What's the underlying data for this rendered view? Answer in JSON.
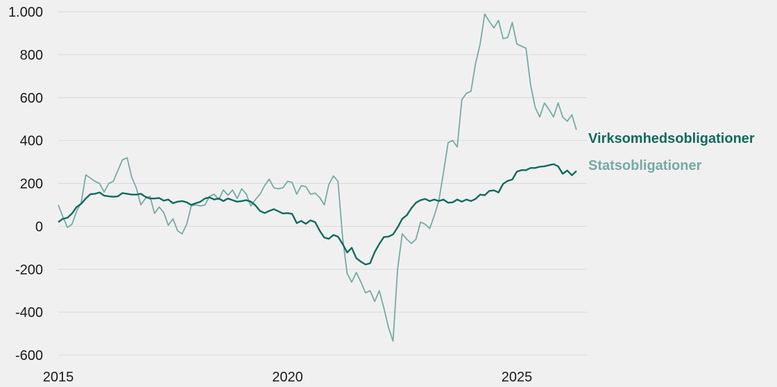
{
  "chart_data": {
    "type": "line",
    "xlim": [
      2015.0,
      2026.3
    ],
    "ylim": [
      -600,
      1000
    ],
    "y_ticks": [
      {
        "value": 1000,
        "label": "1.000"
      },
      {
        "value": 800,
        "label": "800"
      },
      {
        "value": 600,
        "label": "600"
      },
      {
        "value": 400,
        "label": "400"
      },
      {
        "value": 200,
        "label": "200"
      },
      {
        "value": 0,
        "label": "0"
      },
      {
        "value": -200,
        "label": "-200"
      },
      {
        "value": -400,
        "label": "-400"
      },
      {
        "value": -600,
        "label": "-600"
      }
    ],
    "x_ticks": [
      {
        "value": 2015,
        "label": "2015"
      },
      {
        "value": 2020,
        "label": "2020"
      },
      {
        "value": 2025,
        "label": "2025"
      }
    ],
    "grid": true,
    "legend_placement": "right, direct labels at line ends",
    "series": [
      {
        "name": "Virksomhedsobligationer",
        "color": "#0e6b5c",
        "points": [
          [
            2015.0,
            20
          ],
          [
            2015.1,
            35
          ],
          [
            2015.2,
            40
          ],
          [
            2015.3,
            60
          ],
          [
            2015.4,
            90
          ],
          [
            2015.5,
            105
          ],
          [
            2015.6,
            130
          ],
          [
            2015.7,
            150
          ],
          [
            2015.8,
            152
          ],
          [
            2015.9,
            158
          ],
          [
            2016.0,
            143
          ],
          [
            2016.1,
            140
          ],
          [
            2016.2,
            138
          ],
          [
            2016.3,
            140
          ],
          [
            2016.4,
            155
          ],
          [
            2016.5,
            152
          ],
          [
            2016.6,
            148
          ],
          [
            2016.7,
            148
          ],
          [
            2016.8,
            152
          ],
          [
            2016.9,
            138
          ],
          [
            2017.0,
            130
          ],
          [
            2017.1,
            130
          ],
          [
            2017.2,
            132
          ],
          [
            2017.3,
            120
          ],
          [
            2017.4,
            125
          ],
          [
            2017.5,
            108
          ],
          [
            2017.6,
            115
          ],
          [
            2017.7,
            118
          ],
          [
            2017.8,
            112
          ],
          [
            2017.9,
            100
          ],
          [
            2018.0,
            108
          ],
          [
            2018.1,
            115
          ],
          [
            2018.2,
            130
          ],
          [
            2018.3,
            135
          ],
          [
            2018.4,
            125
          ],
          [
            2018.5,
            130
          ],
          [
            2018.6,
            118
          ],
          [
            2018.7,
            130
          ],
          [
            2018.8,
            122
          ],
          [
            2018.9,
            115
          ],
          [
            2019.0,
            118
          ],
          [
            2019.1,
            122
          ],
          [
            2019.2,
            115
          ],
          [
            2019.3,
            98
          ],
          [
            2019.4,
            72
          ],
          [
            2019.5,
            62
          ],
          [
            2019.6,
            72
          ],
          [
            2019.7,
            80
          ],
          [
            2019.8,
            70
          ],
          [
            2019.9,
            60
          ],
          [
            2020.0,
            62
          ],
          [
            2020.1,
            58
          ],
          [
            2020.2,
            15
          ],
          [
            2020.3,
            25
          ],
          [
            2020.4,
            12
          ],
          [
            2020.5,
            28
          ],
          [
            2020.6,
            20
          ],
          [
            2020.7,
            -20
          ],
          [
            2020.8,
            -52
          ],
          [
            2020.9,
            -58
          ],
          [
            2021.0,
            -40
          ],
          [
            2021.1,
            -48
          ],
          [
            2021.2,
            -82
          ],
          [
            2021.3,
            -122
          ],
          [
            2021.4,
            -100
          ],
          [
            2021.5,
            -148
          ],
          [
            2021.6,
            -165
          ],
          [
            2021.7,
            -178
          ],
          [
            2021.8,
            -172
          ],
          [
            2021.9,
            -120
          ],
          [
            2022.0,
            -82
          ],
          [
            2022.1,
            -50
          ],
          [
            2022.2,
            -48
          ],
          [
            2022.3,
            -38
          ],
          [
            2022.4,
            -5
          ],
          [
            2022.5,
            35
          ],
          [
            2022.6,
            52
          ],
          [
            2022.7,
            85
          ],
          [
            2022.8,
            110
          ],
          [
            2022.9,
            122
          ],
          [
            2023.0,
            128
          ],
          [
            2023.1,
            118
          ],
          [
            2023.2,
            125
          ],
          [
            2023.3,
            118
          ],
          [
            2023.4,
            125
          ],
          [
            2023.5,
            110
          ],
          [
            2023.6,
            112
          ],
          [
            2023.7,
            125
          ],
          [
            2023.8,
            115
          ],
          [
            2023.9,
            125
          ],
          [
            2024.0,
            118
          ],
          [
            2024.1,
            128
          ],
          [
            2024.2,
            148
          ],
          [
            2024.3,
            145
          ],
          [
            2024.4,
            165
          ],
          [
            2024.5,
            168
          ],
          [
            2024.6,
            158
          ],
          [
            2024.7,
            198
          ],
          [
            2024.8,
            212
          ],
          [
            2024.9,
            218
          ],
          [
            2025.0,
            255
          ],
          [
            2025.1,
            262
          ],
          [
            2025.2,
            262
          ],
          [
            2025.3,
            272
          ],
          [
            2025.4,
            272
          ],
          [
            2025.5,
            278
          ],
          [
            2025.6,
            280
          ],
          [
            2025.7,
            285
          ],
          [
            2025.8,
            290
          ],
          [
            2025.9,
            280
          ],
          [
            2026.0,
            245
          ],
          [
            2026.1,
            260
          ],
          [
            2026.2,
            238
          ],
          [
            2026.3,
            258
          ]
        ]
      },
      {
        "name": "Statsobligationer",
        "color": "#76aaa4",
        "points": [
          [
            2015.0,
            100
          ],
          [
            2015.1,
            45
          ],
          [
            2015.2,
            -5
          ],
          [
            2015.3,
            10
          ],
          [
            2015.4,
            70
          ],
          [
            2015.5,
            110
          ],
          [
            2015.6,
            240
          ],
          [
            2015.7,
            225
          ],
          [
            2015.8,
            210
          ],
          [
            2015.9,
            200
          ],
          [
            2016.0,
            160
          ],
          [
            2016.1,
            200
          ],
          [
            2016.2,
            210
          ],
          [
            2016.3,
            260
          ],
          [
            2016.4,
            310
          ],
          [
            2016.5,
            320
          ],
          [
            2016.6,
            230
          ],
          [
            2016.7,
            180
          ],
          [
            2016.8,
            100
          ],
          [
            2016.9,
            130
          ],
          [
            2017.0,
            140
          ],
          [
            2017.1,
            60
          ],
          [
            2017.2,
            90
          ],
          [
            2017.3,
            65
          ],
          [
            2017.4,
            5
          ],
          [
            2017.5,
            35
          ],
          [
            2017.6,
            -20
          ],
          [
            2017.7,
            -35
          ],
          [
            2017.8,
            10
          ],
          [
            2017.9,
            95
          ],
          [
            2018.0,
            100
          ],
          [
            2018.1,
            95
          ],
          [
            2018.2,
            100
          ],
          [
            2018.3,
            140
          ],
          [
            2018.4,
            150
          ],
          [
            2018.5,
            125
          ],
          [
            2018.6,
            170
          ],
          [
            2018.7,
            145
          ],
          [
            2018.8,
            170
          ],
          [
            2018.9,
            130
          ],
          [
            2019.0,
            175
          ],
          [
            2019.1,
            150
          ],
          [
            2019.2,
            95
          ],
          [
            2019.3,
            125
          ],
          [
            2019.4,
            150
          ],
          [
            2019.5,
            190
          ],
          [
            2019.6,
            220
          ],
          [
            2019.7,
            180
          ],
          [
            2019.8,
            175
          ],
          [
            2019.9,
            180
          ],
          [
            2020.0,
            210
          ],
          [
            2020.1,
            205
          ],
          [
            2020.2,
            150
          ],
          [
            2020.3,
            190
          ],
          [
            2020.4,
            185
          ],
          [
            2020.5,
            150
          ],
          [
            2020.6,
            155
          ],
          [
            2020.7,
            135
          ],
          [
            2020.8,
            100
          ],
          [
            2020.9,
            195
          ],
          [
            2021.0,
            235
          ],
          [
            2021.1,
            210
          ],
          [
            2021.2,
            -50
          ],
          [
            2021.3,
            -220
          ],
          [
            2021.4,
            -260
          ],
          [
            2021.5,
            -215
          ],
          [
            2021.6,
            -260
          ],
          [
            2021.7,
            -310
          ],
          [
            2021.8,
            -300
          ],
          [
            2021.9,
            -350
          ],
          [
            2022.0,
            -300
          ],
          [
            2022.1,
            -380
          ],
          [
            2022.2,
            -470
          ],
          [
            2022.3,
            -535
          ],
          [
            2022.4,
            -200
          ],
          [
            2022.5,
            -35
          ],
          [
            2022.6,
            -60
          ],
          [
            2022.7,
            -80
          ],
          [
            2022.8,
            -60
          ],
          [
            2022.9,
            20
          ],
          [
            2023.0,
            10
          ],
          [
            2023.1,
            -10
          ],
          [
            2023.2,
            50
          ],
          [
            2023.3,
            120
          ],
          [
            2023.4,
            250
          ],
          [
            2023.5,
            390
          ],
          [
            2023.6,
            400
          ],
          [
            2023.7,
            370
          ],
          [
            2023.8,
            590
          ],
          [
            2023.9,
            620
          ],
          [
            2024.0,
            630
          ],
          [
            2024.1,
            760
          ],
          [
            2024.2,
            850
          ],
          [
            2024.3,
            990
          ],
          [
            2024.4,
            955
          ],
          [
            2024.5,
            925
          ],
          [
            2024.6,
            960
          ],
          [
            2024.7,
            875
          ],
          [
            2024.8,
            880
          ],
          [
            2024.9,
            950
          ],
          [
            2025.0,
            850
          ],
          [
            2025.1,
            840
          ],
          [
            2025.2,
            830
          ],
          [
            2025.3,
            660
          ],
          [
            2025.4,
            555
          ],
          [
            2025.5,
            510
          ],
          [
            2025.6,
            575
          ],
          [
            2025.7,
            545
          ],
          [
            2025.8,
            510
          ],
          [
            2025.9,
            575
          ],
          [
            2026.0,
            510
          ],
          [
            2026.1,
            490
          ],
          [
            2026.2,
            520
          ],
          [
            2026.3,
            450
          ]
        ]
      }
    ]
  },
  "legend": [
    {
      "label": "Virksomhedsobligationer",
      "color": "#0e6b5c"
    },
    {
      "label": "Statsobligationer",
      "color": "#76aaa4"
    }
  ]
}
